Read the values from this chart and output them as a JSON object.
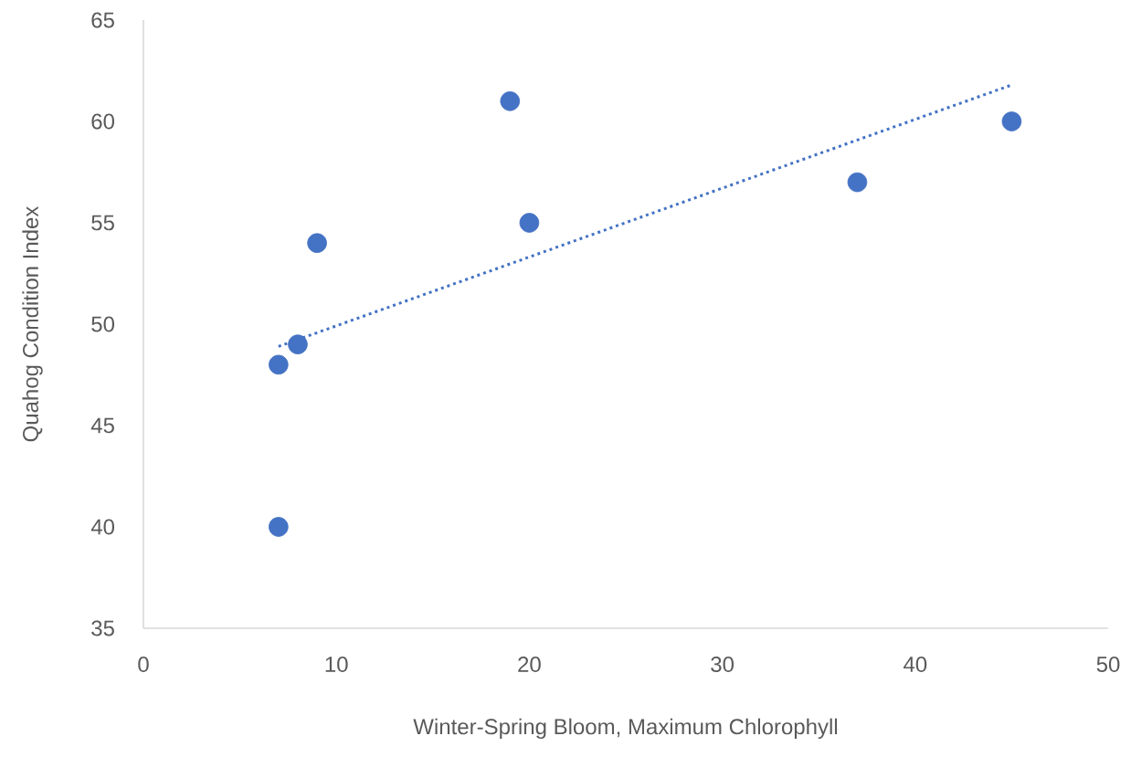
{
  "chart_data": {
    "type": "scatter",
    "xlabel": "Winter-Spring Bloom, Maximum Chlorophyll",
    "ylabel": "Quahog Condition Index",
    "xlim": [
      0,
      50
    ],
    "ylim": [
      35,
      65
    ],
    "xticks": [
      0,
      10,
      20,
      30,
      40,
      50
    ],
    "yticks": [
      35,
      40,
      45,
      50,
      55,
      60,
      65
    ],
    "series": [
      {
        "color": "#4472c4",
        "marker": "circle",
        "x": [
          7,
          7,
          8,
          9,
          19,
          20,
          37,
          45
        ],
        "values": [
          40,
          48,
          49,
          54,
          61,
          55,
          57,
          60
        ]
      },
      {
        "type": "line",
        "color": "#4472c4",
        "marker": "none",
        "line_style": "dotted",
        "x": [
          7,
          45
        ],
        "values": [
          48.9,
          61.8
        ]
      }
    ]
  }
}
